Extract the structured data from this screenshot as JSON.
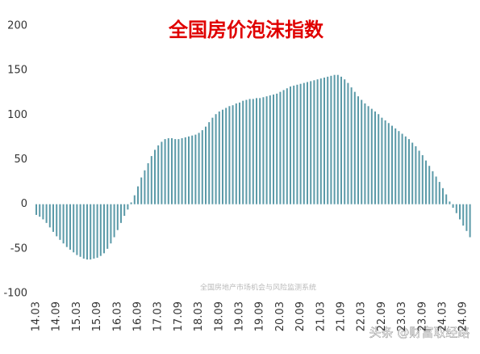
{
  "chart_data": {
    "type": "bar",
    "title": "全国房价泡沫指数",
    "annotations": [
      "全国房地产市场机会与风险监测系统",
      "头条 @财富取经路"
    ],
    "categories": [
      "14.03",
      null,
      null,
      null,
      null,
      null,
      "14.09",
      null,
      null,
      null,
      null,
      null,
      "15.03",
      null,
      null,
      null,
      null,
      null,
      "15.09",
      null,
      null,
      null,
      null,
      null,
      "16.03",
      null,
      null,
      null,
      null,
      null,
      "16.09",
      null,
      null,
      null,
      null,
      null,
      "17.03",
      null,
      null,
      null,
      null,
      null,
      "17.09",
      null,
      null,
      null,
      null,
      null,
      "18.03",
      null,
      null,
      null,
      null,
      null,
      "18.09",
      null,
      null,
      null,
      null,
      null,
      "19.03",
      null,
      null,
      null,
      null,
      null,
      "19.09",
      null,
      null,
      null,
      null,
      null,
      "20.03",
      null,
      null,
      null,
      null,
      null,
      "20.09",
      null,
      null,
      null,
      null,
      null,
      "21.03",
      null,
      null,
      null,
      null,
      null,
      "21.09",
      null,
      null,
      null,
      null,
      null,
      "22.03",
      null,
      null,
      null,
      null,
      null,
      "22.09",
      null,
      null,
      null,
      null,
      null,
      "23.03",
      null,
      null,
      null,
      null,
      null,
      "23.09",
      null,
      null,
      null,
      null,
      null,
      "24.03",
      null,
      null,
      null,
      null,
      null,
      "24.09",
      null,
      null
    ],
    "values": [
      -12,
      -14,
      -17,
      -21,
      -26,
      -31,
      -36,
      -40,
      -44,
      -48,
      -51,
      -54,
      -57,
      -59,
      -61,
      -62,
      -62,
      -61,
      -60,
      -58,
      -55,
      -50,
      -44,
      -37,
      -29,
      -21,
      -13,
      -6,
      2,
      10,
      20,
      30,
      38,
      46,
      54,
      61,
      66,
      70,
      73,
      74,
      74,
      73,
      73,
      74,
      75,
      76,
      77,
      78,
      80,
      83,
      87,
      92,
      97,
      101,
      104,
      106,
      108,
      110,
      111,
      113,
      114,
      116,
      117,
      118,
      118,
      119,
      119,
      120,
      121,
      122,
      123,
      124,
      126,
      128,
      130,
      132,
      133,
      134,
      135,
      136,
      137,
      138,
      139,
      140,
      141,
      142,
      143,
      144,
      145,
      145,
      143,
      140,
      136,
      131,
      126,
      121,
      117,
      113,
      110,
      107,
      104,
      101,
      97,
      94,
      91,
      88,
      85,
      82,
      79,
      76,
      73,
      69,
      65,
      60,
      55,
      49,
      43,
      37,
      31,
      25,
      18,
      11,
      3,
      -4,
      -10,
      -17,
      -24,
      -30,
      -37
    ],
    "color": "#5b9aa8",
    "ylim": [
      -100,
      200
    ],
    "yticks": [
      -100,
      -50,
      0,
      50,
      100,
      150,
      200
    ],
    "grid": false
  }
}
